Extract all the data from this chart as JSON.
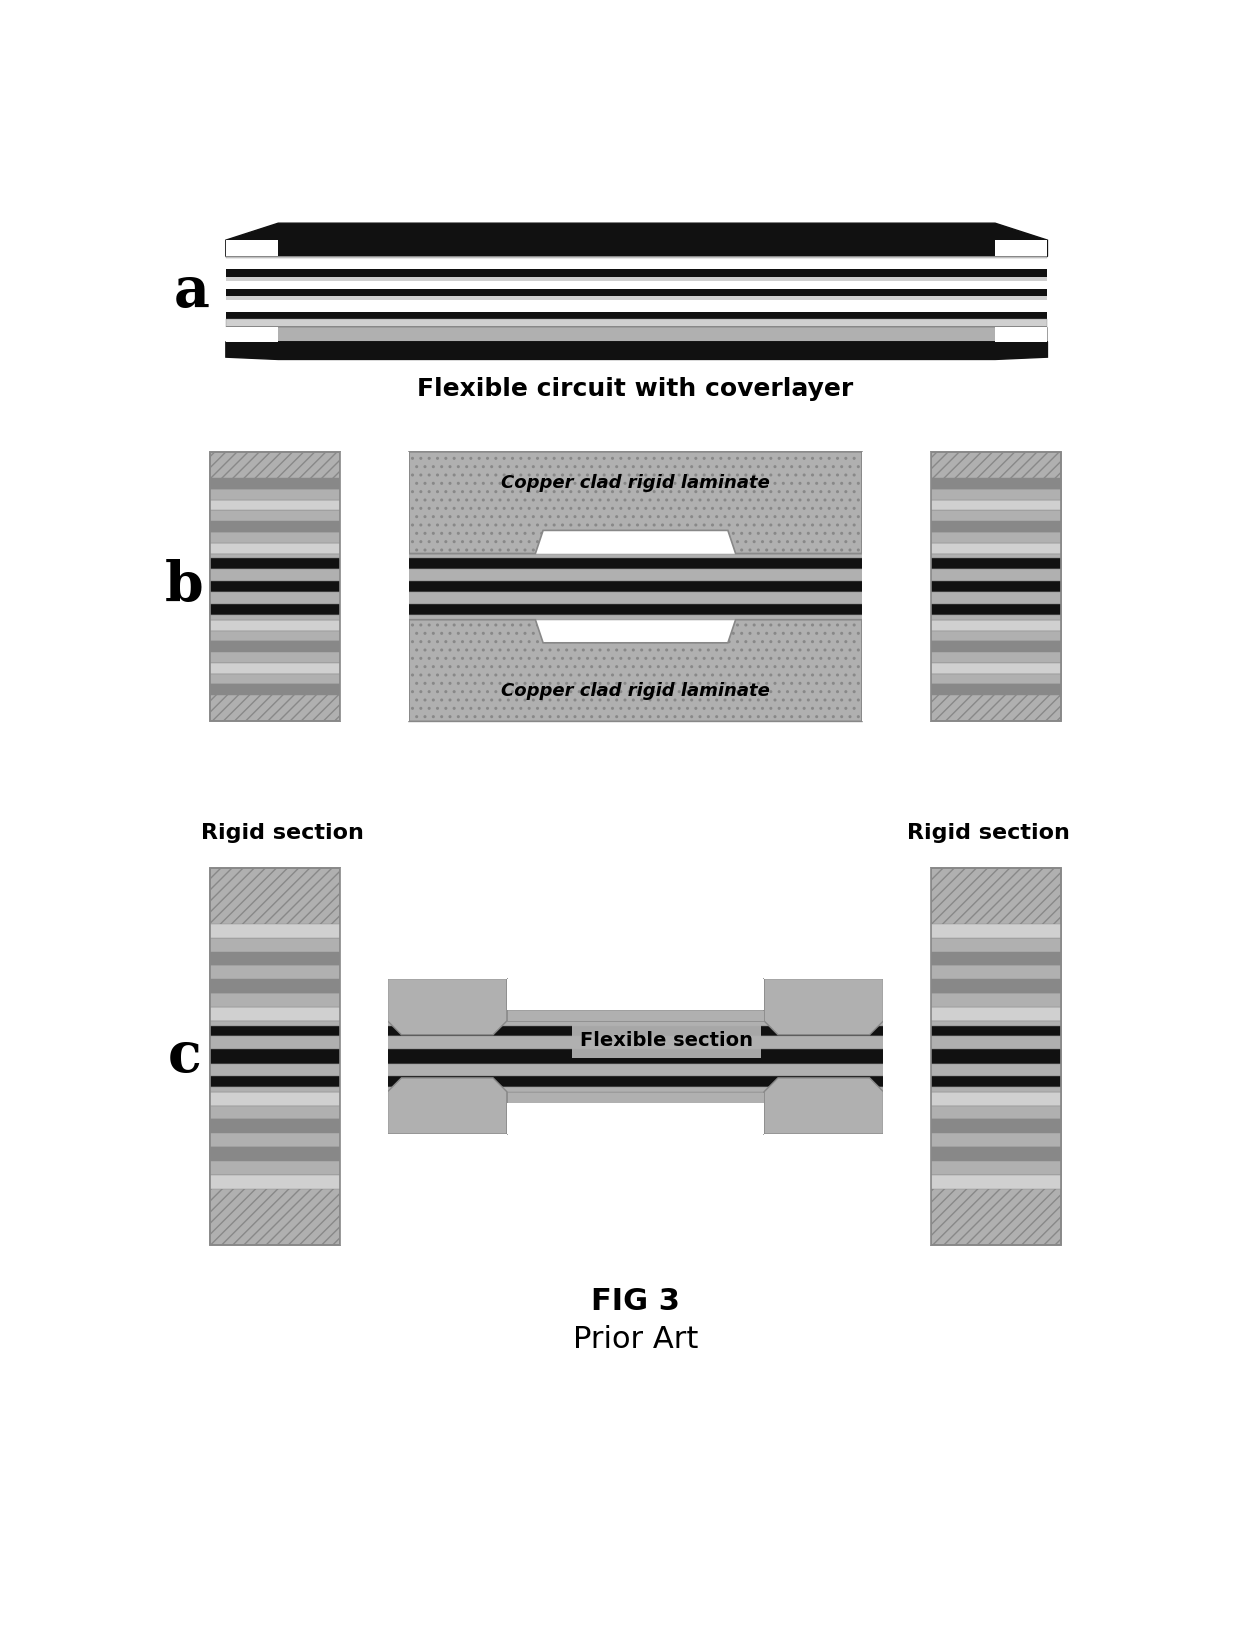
{
  "bg_color": "#ffffff",
  "C_black": "#111111",
  "C_dgray": "#555555",
  "C_mgray": "#888888",
  "C_lgray": "#b0b0b0",
  "C_vlgray": "#d0d0d0",
  "C_hatch": "#909090",
  "C_white": "#ffffff",
  "caption_a": "Flexible circuit with coverlayer",
  "caption_b_top": "Copper clad rigid laminate",
  "caption_b_bot": "Copper clad rigid laminate",
  "caption_c_left": "Rigid section",
  "caption_c_right": "Rigid section",
  "caption_c_flex": "Flexible section",
  "fig_label": "FIG 3",
  "prior_art": "Prior Art",
  "label_a": "a",
  "label_b": "b",
  "label_c": "c"
}
